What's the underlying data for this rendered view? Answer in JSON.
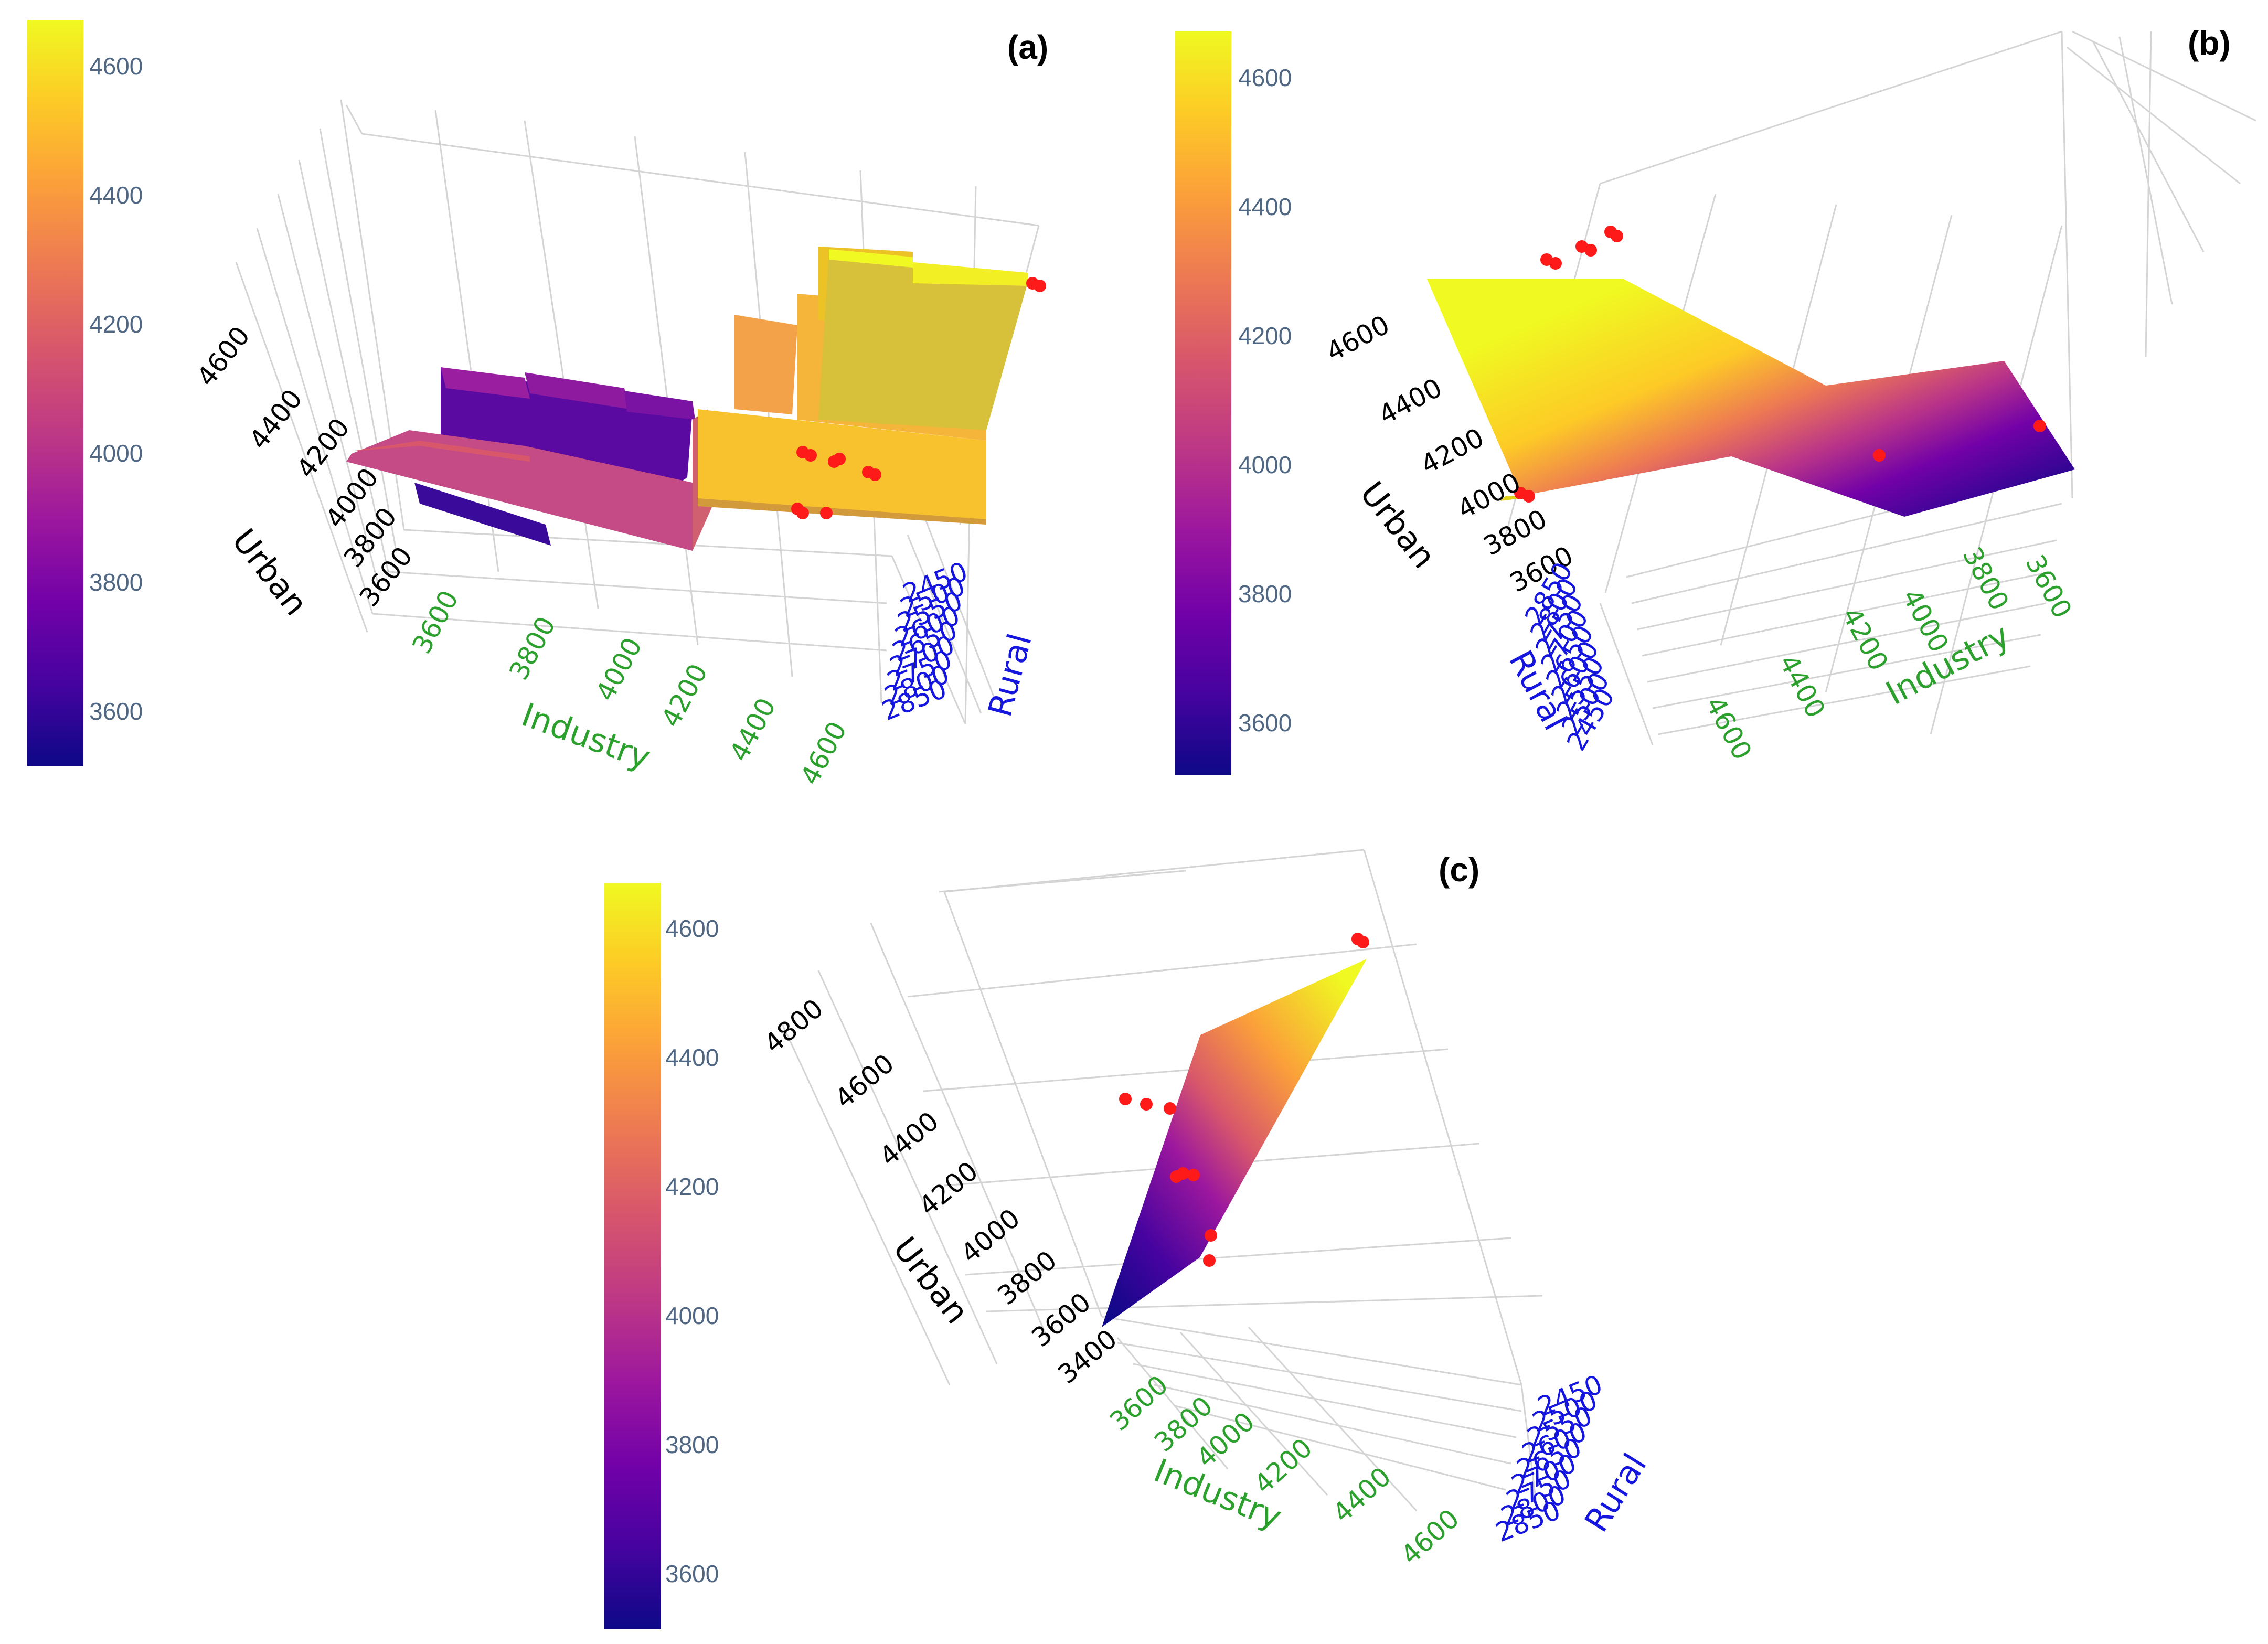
{
  "figure": {
    "panels": [
      "(a)",
      "(b)",
      "(c)"
    ]
  },
  "colors": {
    "industry_axis": "#2ca02c",
    "rural_axis": "#1515e0",
    "urban_axis": "#000000",
    "points": "#ff1a1a",
    "colorscale": [
      "#0d0887",
      "#46039f",
      "#7201a8",
      "#9c179e",
      "#bd3786",
      "#d8576b",
      "#ed7953",
      "#fb9f3a",
      "#fdca26",
      "#f0f921"
    ]
  },
  "chart_data": [
    {
      "panel": "(a)",
      "type": "surface-3d-stepped",
      "colorbar": {
        "ticks": [
          "4600",
          "4400",
          "4200",
          "4000",
          "3800",
          "3600"
        ],
        "range": [
          3520,
          4660
        ]
      },
      "axes": {
        "urban": {
          "title": "Urban",
          "ticks": [
            "3600",
            "3800",
            "4000",
            "4200",
            "4400",
            "4600"
          ]
        },
        "industry": {
          "title": "Industry",
          "ticks": [
            "3600",
            "3800",
            "4000",
            "4200",
            "4400",
            "4600"
          ]
        },
        "rural": {
          "title": "Rural",
          "ticks": [
            "2450",
            "2500",
            "2550",
            "2600",
            "2650",
            "2700",
            "2750",
            "2800",
            "2850"
          ]
        }
      },
      "surface_levels": [
        3700,
        3780,
        3900,
        4010,
        4120,
        4380,
        4460,
        4560,
        4620
      ]
    },
    {
      "panel": "(b)",
      "type": "surface-3d-plane",
      "colorbar": {
        "ticks": [
          "4600",
          "4400",
          "4200",
          "4000",
          "3800",
          "3600"
        ],
        "range": [
          3520,
          4660
        ]
      },
      "axes": {
        "urban": {
          "title": "Urban",
          "ticks": [
            "3600",
            "3800",
            "4000",
            "4200",
            "4400",
            "4600"
          ]
        },
        "industry": {
          "title": "Industry",
          "ticks": [
            "3600",
            "3800",
            "4000",
            "4200",
            "4400",
            "4600"
          ]
        },
        "rural": {
          "title": "Rural",
          "ticks": [
            "2850",
            "2800",
            "2750",
            "2700",
            "2650",
            "2600",
            "2550",
            "2500",
            "2450"
          ]
        }
      },
      "surface_levels": [
        4620,
        4560,
        4200,
        3820,
        3580
      ]
    },
    {
      "panel": "(c)",
      "type": "surface-3d-plane",
      "colorbar": {
        "ticks": [
          "4600",
          "4400",
          "4200",
          "4000",
          "3800",
          "3600"
        ],
        "range": [
          3520,
          4660
        ]
      },
      "axes": {
        "urban": {
          "title": "Urban",
          "ticks": [
            "3400",
            "3600",
            "3800",
            "4000",
            "4200",
            "4400",
            "4600",
            "4800"
          ]
        },
        "industry": {
          "title": "Industry",
          "ticks": [
            "3600",
            "3800",
            "4000",
            "4200",
            "4400",
            "4600"
          ]
        },
        "rural": {
          "title": "Rural",
          "ticks": [
            "2450",
            "2500",
            "2550",
            "2600",
            "2650",
            "2700",
            "2750",
            "2800",
            "2850"
          ]
        }
      },
      "surface_levels": [
        3560,
        4100,
        4650
      ]
    }
  ]
}
